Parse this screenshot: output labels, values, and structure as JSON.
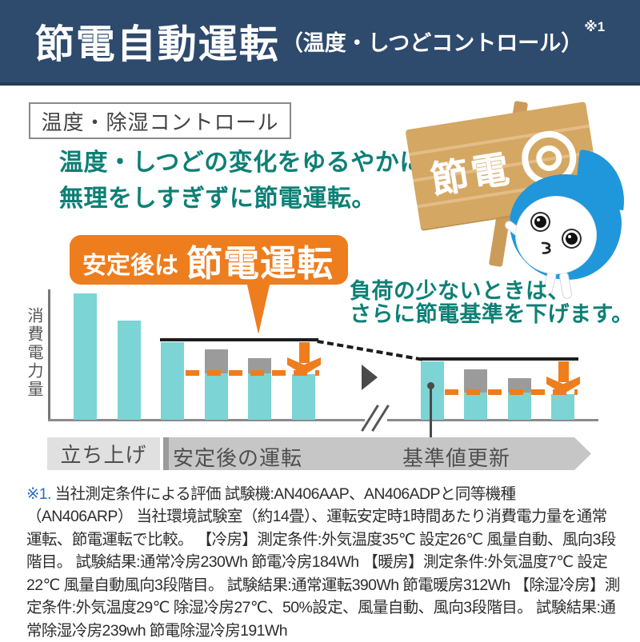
{
  "colors": {
    "header_bg": "#2e4a6c",
    "teal_text": "#0d8076",
    "orange_accent": "#ee7d1e",
    "teal_bar": "#7dd4d4",
    "gray_bar": "#9b9b9b",
    "wood_sign": "#d4a763",
    "mascot_blue": "#1f97da",
    "footnote_marker_blue": "#2d6bc4"
  },
  "header": {
    "title": "節電自動運転",
    "subtitle": "（温度・しつどコントロール）",
    "ref": "※1"
  },
  "feature_tag": "温度・除湿コントロール",
  "lead": {
    "line1": "温度・しつどの変化をゆるやかに、",
    "line2": "無理をしすぎずに節電運転。"
  },
  "sign": {
    "text": "節電"
  },
  "badge": {
    "prefix": "安定後は",
    "emphasis": "節電運転"
  },
  "right_note": {
    "line1": "負荷の少ないときは、",
    "line2": "さらに節電基準を下げます。"
  },
  "chart_data": {
    "type": "bar",
    "ylabel": "消費電力量",
    "x_phases": [
      "立ち上げ",
      "安定後の運転",
      "基準値更新"
    ],
    "unit": "relative_height_px",
    "bars_left": [
      {
        "phase": "立ち上げ",
        "teal": 158
      },
      {
        "phase": "立ち上げ",
        "teal": 124
      },
      {
        "phase": "安定後の運転",
        "teal": 97
      },
      {
        "phase": "安定後の運転",
        "teal": 58,
        "gray": 30
      },
      {
        "phase": "安定後の運転",
        "teal": 58,
        "gray": 19
      },
      {
        "phase": "安定後の運転",
        "teal": 57
      }
    ],
    "bars_right": [
      {
        "phase": "基準値更新",
        "teal": 73
      },
      {
        "phase": "基準値更新",
        "teal": 34,
        "gray": 29
      },
      {
        "phase": "基準値更新",
        "teal": 34,
        "gray": 18
      },
      {
        "phase": "基準値更新",
        "teal": 32
      }
    ],
    "legend": null,
    "grid": false,
    "annotations": {
      "solid_baseline": "通常運転レベル（黒実線）",
      "orange_dashed": "節電基準レベル（橙破線）",
      "arrows": "節電基準まで消費電力を低減（橙矢印）"
    }
  },
  "timeline": {
    "startup": "立ち上げ",
    "stable": "安定後の運転",
    "update": "基準値更新"
  },
  "footnote": {
    "marker": "※1.",
    "body": " 当社測定条件による評価 試験機:AN406AAP、AN406ADPと同等機種（AN406ARP） 当社環境試験室（約14畳）、運転安定時1時間あたり消費電力量を通常運転、節電運転で比較。 【冷房】測定条件:外気温度35℃ 設定26℃ 風量自動、風向3段階目。 試験結果:通常冷房230Wh 節電冷房184Wh 【暖房】測定条件:外気温度7℃ 設定22℃ 風量自動風向3段階目。 試験結果:通常運転390Wh 節電暖房312Wh 【除湿冷房】測定条件:外気温度29℃ 除湿冷房27℃、50%設定、風量自動、風向3段階目。 試験結果:通常除湿冷房239wh 節電除湿冷房191Wh"
  }
}
